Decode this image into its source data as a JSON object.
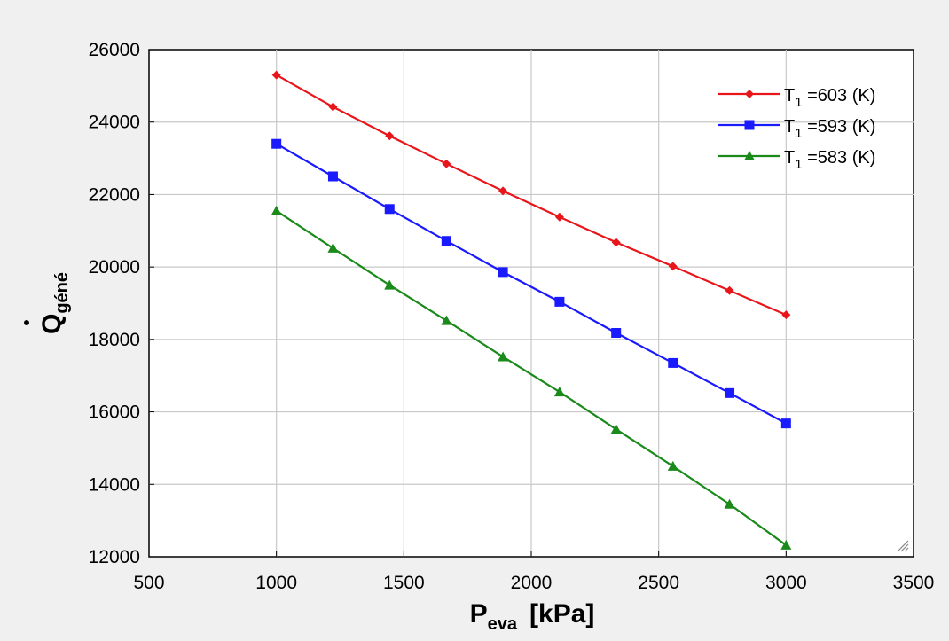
{
  "chart_data": {
    "type": "line",
    "xlabel": {
      "main": "P",
      "sub": "eva",
      "unit": "[kPa]"
    },
    "ylabel": {
      "main": "Q",
      "sub": "géné"
    },
    "xlim": [
      500,
      3500
    ],
    "ylim": [
      12000,
      26000
    ],
    "xticks": [
      500,
      1000,
      1500,
      2000,
      2500,
      3000,
      3500
    ],
    "yticks": [
      12000,
      14000,
      16000,
      18000,
      20000,
      22000,
      24000,
      26000
    ],
    "grid": true,
    "legend_position": "top-right",
    "x": [
      1000,
      1222,
      1444,
      1667,
      1889,
      2111,
      2333,
      2556,
      2778,
      3000
    ],
    "series": [
      {
        "label_main": "T",
        "label_sub": "1",
        "label_rest": " =603 (K)",
        "color": "#e8161b",
        "marker": "diamond",
        "values": [
          25300,
          24420,
          23620,
          22850,
          22100,
          21380,
          20680,
          20020,
          19350,
          18680
        ]
      },
      {
        "label_main": "T",
        "label_sub": "1",
        "label_rest": " =593 (K)",
        "color": "#1a1aff",
        "marker": "square",
        "values": [
          23400,
          22500,
          21600,
          20720,
          19860,
          19040,
          18180,
          17350,
          16520,
          15680
        ]
      },
      {
        "label_main": "T",
        "label_sub": "1",
        "label_rest": " =583 (K)",
        "color": "#1a8a1a",
        "marker": "triangle",
        "values": [
          21550,
          20520,
          19500,
          18520,
          17520,
          16550,
          15520,
          14500,
          13450,
          12320
        ]
      }
    ]
  }
}
